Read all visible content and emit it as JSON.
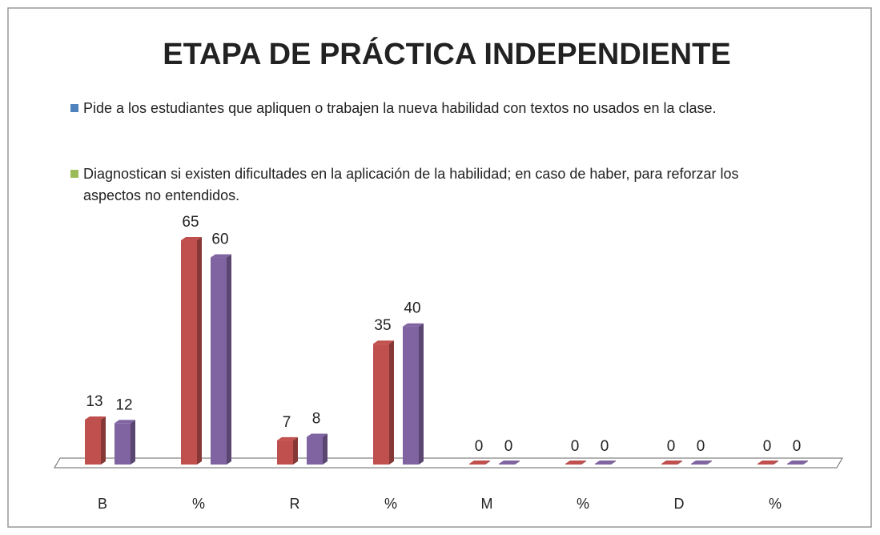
{
  "chart_data": {
    "type": "bar3d",
    "title": "ETAPA DE PRÁCTICA INDEPENDIENTE",
    "categories": [
      "B",
      "%",
      "R",
      "%",
      "M",
      "%",
      "D",
      "%"
    ],
    "series": [
      {
        "name": "Pide a los estudiantes que apliquen o trabajen la nueva habilidad con textos no usados en la clase.",
        "color": "#c0504d",
        "legend_color": "#4f81bd",
        "values": [
          13,
          65,
          7,
          35,
          0,
          0,
          0,
          0
        ]
      },
      {
        "name": "Diagnostican si existen dificultades en la aplicación de la habilidad; en caso de haber, para reforzar los aspectos no entendidos.",
        "color": "#8064a2",
        "legend_color": "#9bbb59",
        "values": [
          12,
          60,
          8,
          40,
          0,
          0,
          0,
          0
        ]
      }
    ]
  }
}
